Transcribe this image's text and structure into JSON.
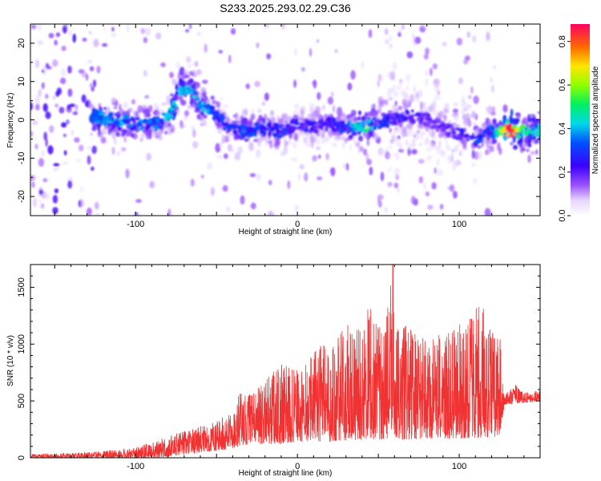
{
  "title": "S233.2025.293.02.29.C36",
  "chart_data": [
    {
      "type": "heatmap",
      "xlabel": "Height of straight line (km)",
      "ylabel": "Frequency (Hz)",
      "xlim": [
        -165,
        150
      ],
      "ylim": [
        -25,
        25
      ],
      "xticks": [
        -100,
        0,
        100
      ],
      "yticks": [
        -20,
        -10,
        0,
        10,
        20
      ],
      "colorbar": {
        "label": "Normalized spectral amplitude",
        "range": [
          0,
          0.88
        ],
        "ticks": [
          0.0,
          0.2,
          0.4,
          0.6,
          0.8
        ]
      },
      "ridge": {
        "x": [
          -125,
          -115,
          -100,
          -85,
          -78,
          -72,
          -65,
          -60,
          -52,
          -45,
          -38,
          -30,
          -20,
          -10,
          0,
          10,
          20,
          30,
          40,
          50,
          60,
          70,
          80,
          90,
          100,
          110,
          120,
          130,
          140,
          148
        ],
        "frequency": [
          1,
          0,
          -1,
          -1,
          2,
          8,
          7,
          4,
          2,
          -1,
          -3,
          -3,
          -2,
          -3,
          -1,
          -2,
          -1,
          -2,
          -2,
          -1,
          0,
          1,
          0,
          -2,
          -4,
          -5,
          -3,
          -3,
          -3,
          -3
        ],
        "amplitude": [
          0.45,
          0.4,
          0.35,
          0.35,
          0.45,
          0.5,
          0.45,
          0.4,
          0.35,
          0.3,
          0.3,
          0.35,
          0.3,
          0.3,
          0.25,
          0.25,
          0.25,
          0.3,
          0.5,
          0.35,
          0.25,
          0.25,
          0.2,
          0.2,
          0.25,
          0.3,
          0.35,
          0.88,
          0.5,
          0.45
        ]
      }
    },
    {
      "type": "line",
      "xlabel": "Height of straight line (km)",
      "ylabel": "SNR (10 * v/v)",
      "xlim": [
        -165,
        150
      ],
      "ylim": [
        0,
        1700
      ],
      "xticks": [
        -100,
        0,
        100
      ],
      "yticks": [
        0,
        500,
        1000,
        1500
      ],
      "color": "#f03232",
      "envelope": {
        "x": [
          -165,
          -140,
          -120,
          -100,
          -90,
          -80,
          -70,
          -60,
          -50,
          -40,
          -35,
          -30,
          -20,
          -10,
          0,
          10,
          20,
          30,
          40,
          45,
          50,
          55,
          58,
          60,
          65,
          70,
          80,
          90,
          100,
          110,
          115,
          120,
          125,
          128,
          130,
          135,
          140,
          150
        ],
        "snr_max": [
          30,
          40,
          60,
          90,
          140,
          190,
          240,
          280,
          320,
          420,
          620,
          560,
          680,
          830,
          780,
          960,
          1020,
          1160,
          1240,
          1340,
          1170,
          1290,
          1700,
          1250,
          1170,
          1190,
          1010,
          1110,
          1170,
          1310,
          1370,
          1150,
          1280,
          540,
          590,
          640,
          570,
          590
        ],
        "snr_min": [
          0,
          0,
          0,
          0,
          0,
          10,
          30,
          40,
          60,
          80,
          100,
          120,
          120,
          120,
          140,
          140,
          140,
          150,
          160,
          160,
          160,
          160,
          170,
          170,
          160,
          160,
          170,
          170,
          170,
          170,
          180,
          180,
          190,
          470,
          470,
          480,
          480,
          500
        ]
      },
      "peak": {
        "x": 59,
        "snr": 1700
      }
    }
  ]
}
